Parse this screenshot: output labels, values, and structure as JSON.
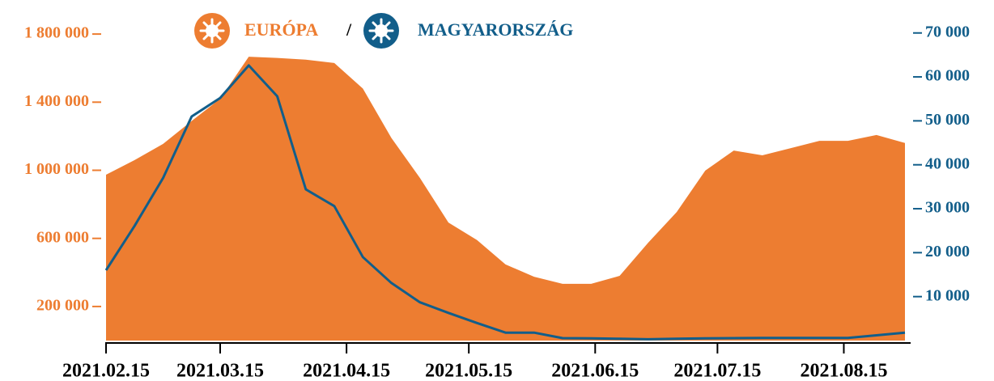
{
  "chart_data": {
    "type": "area-line",
    "legend_separator": "/",
    "x": [
      "2021.02.15",
      "2021.02.22",
      "2021.03.01",
      "2021.03.08",
      "2021.03.15",
      "2021.03.22",
      "2021.03.29",
      "2021.04.05",
      "2021.04.12",
      "2021.04.19",
      "2021.04.26",
      "2021.05.03",
      "2021.05.10",
      "2021.05.17",
      "2021.05.24",
      "2021.05.31",
      "2021.06.07",
      "2021.06.14",
      "2021.06.21",
      "2021.06.28",
      "2021.07.05",
      "2021.07.12",
      "2021.07.19",
      "2021.07.26",
      "2021.08.02",
      "2021.08.09",
      "2021.08.16",
      "2021.08.23",
      "2021.08.30"
    ],
    "xlim": [
      "2021.02.15",
      "2021.08.30"
    ],
    "xticks": [
      "2021.02.15",
      "2021.03.15",
      "2021.04.15",
      "2021.05.15",
      "2021.06.15",
      "2021.07.15",
      "2021.08.15"
    ],
    "ylim": [
      0,
      2000000
    ],
    "yticks": [
      {
        "value": 200000,
        "label": "200 000"
      },
      {
        "value": 600000,
        "label": "600 000"
      },
      {
        "value": 1000000,
        "label": "1 000 000"
      },
      {
        "value": 1400000,
        "label": "1 400 000"
      },
      {
        "value": 1800000,
        "label": "1 800 000"
      }
    ],
    "y2lim": [
      0,
      77500
    ],
    "y2ticks": [
      {
        "value": 10000,
        "label": "10 000"
      },
      {
        "value": 20000,
        "label": "20 000"
      },
      {
        "value": 30000,
        "label": "30 000"
      },
      {
        "value": 40000,
        "label": "40 000"
      },
      {
        "value": 50000,
        "label": "50 000"
      },
      {
        "value": 60000,
        "label": "60 000"
      },
      {
        "value": 70000,
        "label": "70 000"
      }
    ],
    "series": [
      {
        "name": "EURÓPA",
        "color": "#ed7d31",
        "kind": "area",
        "axis": "y",
        "values": [
          974000,
          1060000,
          1155000,
          1290000,
          1420000,
          1667000,
          1660000,
          1650000,
          1630000,
          1480000,
          1190000,
          955000,
          693000,
          590000,
          447000,
          375000,
          333000,
          333000,
          380000,
          575000,
          755000,
          998000,
          1116000,
          1088000,
          1130000,
          1173000,
          1173000,
          1207000,
          1160000
        ]
      },
      {
        "name": "MAGYARORSZÁG",
        "color": "#125e8a",
        "kind": "line",
        "axis": "y2",
        "values": [
          16000,
          26100,
          37000,
          51000,
          55200,
          62600,
          55600,
          34400,
          30600,
          19000,
          13100,
          8700,
          6300,
          4000,
          1800,
          1800,
          550,
          500,
          400,
          300,
          400,
          500,
          550,
          600,
          600,
          600,
          600,
          1200,
          1800
        ]
      }
    ]
  }
}
